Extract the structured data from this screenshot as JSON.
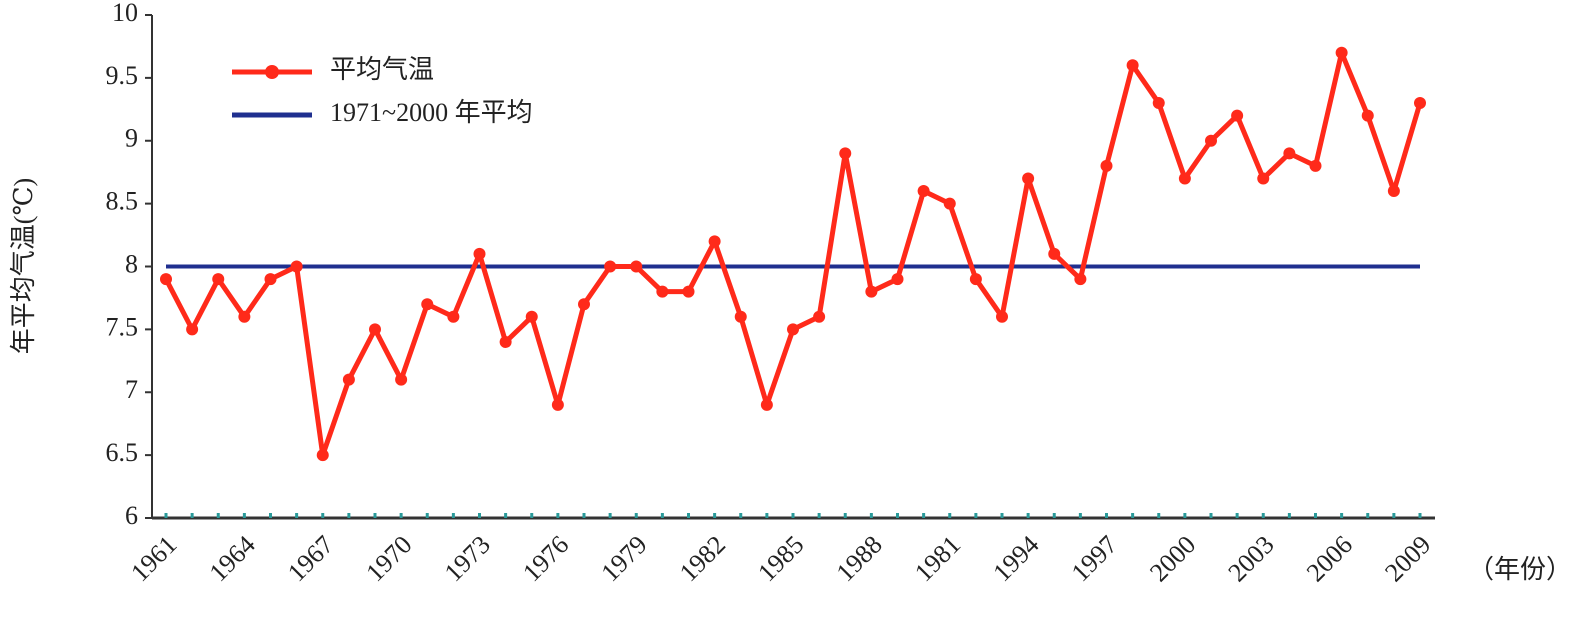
{
  "chart_data": {
    "type": "line",
    "y_label": "年平均气温(℃)",
    "x_label": "（年份）",
    "categories": [
      "1961",
      null,
      null,
      "1964",
      null,
      null,
      "1967",
      null,
      null,
      "1970",
      null,
      null,
      "1973",
      null,
      null,
      "1976",
      null,
      null,
      "1979",
      null,
      null,
      "1982",
      null,
      null,
      "1985",
      null,
      null,
      "1988",
      null,
      null,
      "1981",
      null,
      null,
      "1994",
      null,
      null,
      "1997",
      null,
      null,
      "2000",
      null,
      null,
      "2003",
      null,
      null,
      "2006",
      null,
      null,
      "2009"
    ],
    "series": [
      {
        "name": "平均气温",
        "color": "#ff2a1a",
        "markers": true,
        "values": [
          7.9,
          7.5,
          7.9,
          7.6,
          7.9,
          8.0,
          6.5,
          7.1,
          7.5,
          7.1,
          7.7,
          7.6,
          8.1,
          7.4,
          7.6,
          6.9,
          7.7,
          8.0,
          8.0,
          7.8,
          7.8,
          8.2,
          7.6,
          6.9,
          7.5,
          7.6,
          8.9,
          7.8,
          7.9,
          8.6,
          8.5,
          7.9,
          7.6,
          8.7,
          8.1,
          7.9,
          8.8,
          9.6,
          9.3,
          8.7,
          9.0,
          9.2,
          8.7,
          8.9,
          8.8,
          9.7,
          9.2,
          8.6,
          9.3
        ]
      },
      {
        "name": "1971~2000 年平均",
        "color": "#1f2f8f",
        "markers": false,
        "values": [
          8,
          8,
          8,
          8,
          8,
          8,
          8,
          8,
          8,
          8,
          8,
          8,
          8,
          8,
          8,
          8,
          8,
          8,
          8,
          8,
          8,
          8,
          8,
          8,
          8,
          8,
          8,
          8,
          8,
          8,
          8,
          8,
          8,
          8,
          8,
          8,
          8,
          8,
          8,
          8,
          8,
          8,
          8,
          8,
          8,
          8,
          8,
          8,
          8
        ]
      }
    ],
    "ylim": [
      6,
      10
    ],
    "yticks": [
      6,
      6.5,
      7,
      7.5,
      8,
      8.5,
      9,
      9.5,
      10
    ],
    "grid": false,
    "legend": "upper left"
  }
}
